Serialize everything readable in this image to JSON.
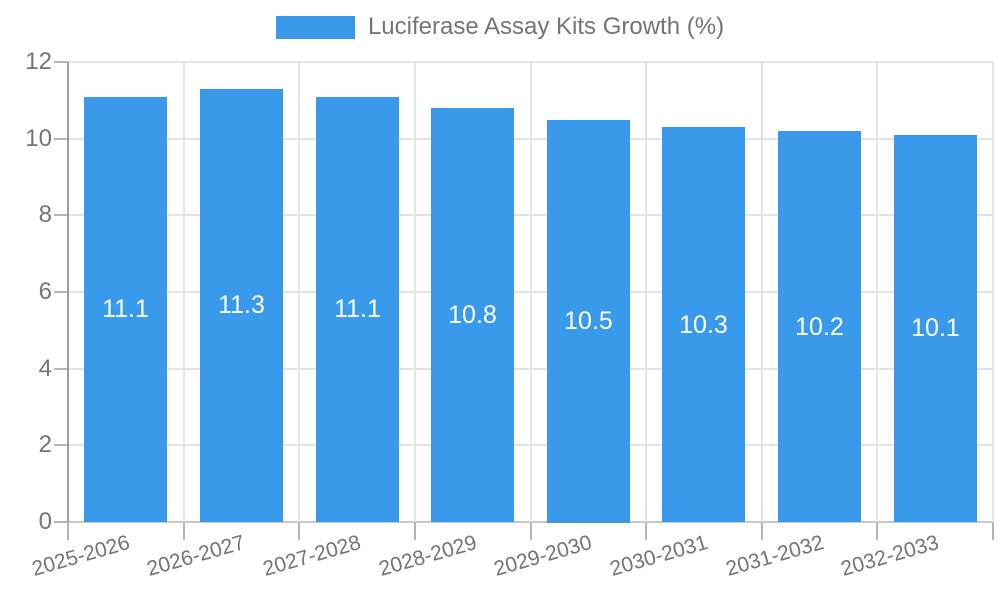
{
  "legend": {
    "label": "Luciferase Assay Kits Growth (%)"
  },
  "chart_data": {
    "type": "bar",
    "title": "Luciferase Assay Kits Growth (%)",
    "categories": [
      "2025-2026",
      "2026-2027",
      "2027-2028",
      "2028-2029",
      "2029-2030",
      "2030-2031",
      "2031-2032",
      "2032-2033"
    ],
    "values": [
      11.1,
      11.3,
      11.1,
      10.8,
      10.5,
      10.3,
      10.2,
      10.1
    ],
    "bar_labels": [
      "11.1",
      "11.3",
      "11.1",
      "10.8",
      "10.5",
      "10.3",
      "10.2",
      "10.1"
    ],
    "xlabel": "",
    "ylabel": "",
    "ylim": [
      0,
      12
    ],
    "yticks": [
      0,
      2,
      4,
      6,
      8,
      10,
      12
    ],
    "y_tick_labels": [
      "0",
      "2",
      "4",
      "6",
      "8",
      "10",
      "12"
    ],
    "grid": true,
    "legend_position": "top",
    "x_label_rotation_deg": -16,
    "colors": {
      "bar": "#3999EB",
      "bar_label": "#FFFFFF",
      "axis_text": "#757575",
      "grid_line": "#E4E4E4",
      "axis_line": "#9E9E9E",
      "tick_line": "#B5B5B5",
      "baseline": "#C9C9C9",
      "background": "#FFFFFF"
    }
  }
}
